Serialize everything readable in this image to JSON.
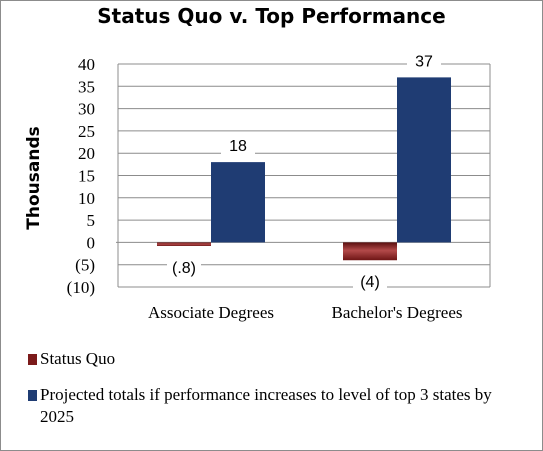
{
  "chart_data": {
    "type": "bar",
    "title": "Status Quo v. Top Performance",
    "ylabel": "Thousands",
    "xlabel": "",
    "categories": [
      "Associate Degrees",
      "Bachelor's Degrees"
    ],
    "ylim": [
      -10,
      40
    ],
    "yticks": [
      {
        "value": 40,
        "label": "40"
      },
      {
        "value": 35,
        "label": "35"
      },
      {
        "value": 30,
        "label": "30"
      },
      {
        "value": 25,
        "label": "25"
      },
      {
        "value": 20,
        "label": "20"
      },
      {
        "value": 15,
        "label": "15"
      },
      {
        "value": 10,
        "label": "10"
      },
      {
        "value": 5,
        "label": "5"
      },
      {
        "value": 0,
        "label": "0"
      },
      {
        "value": -5,
        "label": "(5)"
      },
      {
        "value": -10,
        "label": "(10)"
      }
    ],
    "grid": true,
    "legend_position": "bottom",
    "series": [
      {
        "name": "Status Quo",
        "color": "#7b1a1a",
        "values": [
          -0.8,
          -4
        ],
        "labels": [
          "(.8)",
          "(4)"
        ]
      },
      {
        "name": "Projected totals if performance increases to level of top 3 states by 2025",
        "color": "#1f3c73",
        "values": [
          18,
          37
        ],
        "labels": [
          "18",
          "37"
        ]
      }
    ]
  }
}
